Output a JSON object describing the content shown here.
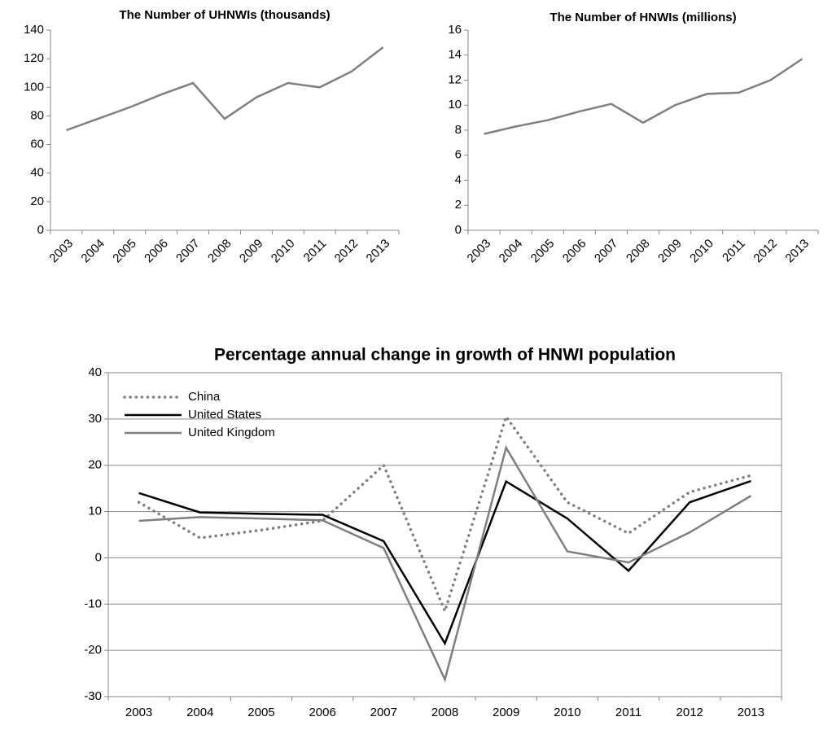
{
  "chart_data": [
    {
      "type": "line",
      "title": "The Number of UHNWIs (thousands)",
      "categories": [
        "2003",
        "2004",
        "2005",
        "2006",
        "2007",
        "2008",
        "2009",
        "2010",
        "2011",
        "2012",
        "2013"
      ],
      "series": [
        {
          "name": null,
          "color": "#7f7f7f",
          "values": [
            70,
            78,
            86,
            95,
            103,
            78,
            93,
            103,
            100,
            111,
            128
          ]
        }
      ],
      "ylim": [
        0,
        140
      ],
      "yticks": [
        0,
        20,
        40,
        60,
        80,
        100,
        120,
        140
      ],
      "grid": false
    },
    {
      "type": "line",
      "title": "The Number of HNWIs (millions)",
      "categories": [
        "2003",
        "2004",
        "2005",
        "2006",
        "2007",
        "2008",
        "2009",
        "2010",
        "2011",
        "2012",
        "2013"
      ],
      "series": [
        {
          "name": null,
          "color": "#7f7f7f",
          "values": [
            7.7,
            8.3,
            8.8,
            9.5,
            10.1,
            8.6,
            10.0,
            10.9,
            11.0,
            12.0,
            13.7
          ]
        }
      ],
      "ylim": [
        0,
        16
      ],
      "yticks": [
        0,
        2,
        4,
        6,
        8,
        10,
        12,
        14,
        16
      ],
      "grid": false
    },
    {
      "type": "line",
      "title": "Percentage annual change in growth of HNWI population",
      "categories": [
        "2003",
        "2004",
        "2005",
        "2006",
        "2007",
        "2008",
        "2009",
        "2010",
        "2011",
        "2012",
        "2013"
      ],
      "series": [
        {
          "name": "China",
          "color": "#7f7f7f",
          "dash": "dotted",
          "values": [
            12,
            4.3,
            6,
            8,
            20,
            -11.5,
            30.5,
            12,
            5.3,
            14.2,
            17.8
          ]
        },
        {
          "name": "United States",
          "color": "#000000",
          "values": [
            14,
            9.8,
            9.5,
            9.3,
            3.6,
            -18.5,
            16.5,
            8.5,
            -2.8,
            12,
            16.6
          ]
        },
        {
          "name": "United Kingdom",
          "color": "#7f7f7f",
          "values": [
            8,
            8.8,
            8.5,
            8.1,
            2.1,
            -26.3,
            23.8,
            1.4,
            -1,
            5.5,
            13.4
          ]
        }
      ],
      "ylim": [
        -30,
        40
      ],
      "yticks": [
        -30,
        -20,
        -10,
        0,
        10,
        20,
        30,
        40
      ],
      "grid": true,
      "legend": "top-left"
    }
  ]
}
